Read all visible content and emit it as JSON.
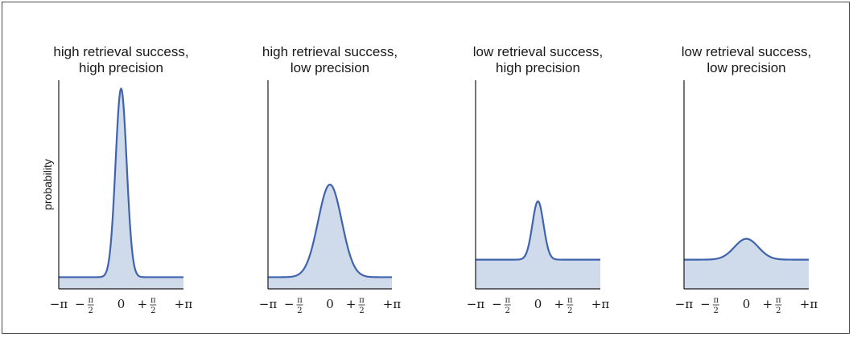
{
  "chart_data": [
    {
      "type": "line",
      "title_lines": [
        "high retrieval success,",
        "high precision"
      ],
      "ylabel": "probability",
      "xlim": [
        -3.14159,
        3.14159
      ],
      "ylim": [
        0,
        1.0
      ],
      "baseline": 0.056,
      "peak": 0.96,
      "width": 0.28,
      "fill_color": "#cfdaea",
      "line_color": "#3f63ad",
      "x_ticks": [
        "−π",
        "−π/2",
        "0",
        "+π/2",
        "+π"
      ]
    },
    {
      "type": "line",
      "title_lines": [
        "high retrieval success,",
        "low precision"
      ],
      "ylabel": "",
      "xlim": [
        -3.14159,
        3.14159
      ],
      "ylim": [
        0,
        1.0
      ],
      "baseline": 0.056,
      "peak": 0.5,
      "width": 0.6,
      "fill_color": "#cfdaea",
      "line_color": "#3f63ad",
      "x_ticks": [
        "−π",
        "−π/2",
        "0",
        "+π/2",
        "+π"
      ]
    },
    {
      "type": "line",
      "title_lines": [
        "low retrieval success,",
        "high precision"
      ],
      "ylabel": "",
      "xlim": [
        -3.14159,
        3.14159
      ],
      "ylim": [
        0,
        1.0
      ],
      "baseline": 0.14,
      "peak": 0.42,
      "width": 0.28,
      "fill_color": "#cfdaea",
      "line_color": "#3f63ad",
      "x_ticks": [
        "−π",
        "−π/2",
        "0",
        "+π/2",
        "+π"
      ]
    },
    {
      "type": "line",
      "title_lines": [
        "low retrieval success,",
        "low precision"
      ],
      "ylabel": "",
      "xlim": [
        -3.14159,
        3.14159
      ],
      "ylim": [
        0,
        1.0
      ],
      "baseline": 0.14,
      "peak": 0.24,
      "width": 0.6,
      "fill_color": "#cfdaea",
      "line_color": "#3f63ad",
      "x_ticks": [
        "−π",
        "−π/2",
        "0",
        "+π/2",
        "+π"
      ]
    }
  ]
}
